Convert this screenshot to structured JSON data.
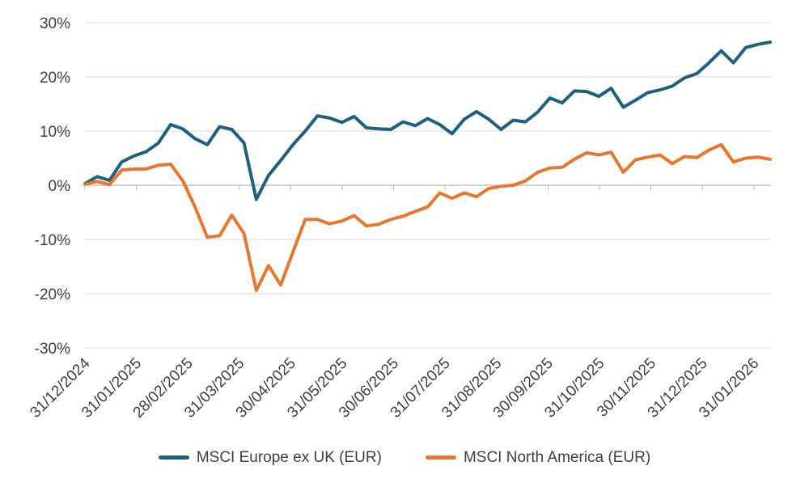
{
  "colors": {
    "background": "#ffffff",
    "gridline": "#dadada",
    "axis": "#b8b8b8",
    "label": "#3f3f3f"
  },
  "chart_data": {
    "type": "line",
    "title": "",
    "x_frequency": "weekly",
    "x_tick_labels": [
      "31/12/2024",
      "31/01/2025",
      "28/02/2025",
      "31/03/2025",
      "30/04/2025",
      "31/05/2025",
      "30/06/2025",
      "31/07/2025",
      "31/08/2025",
      "30/09/2025",
      "31/10/2025",
      "30/11/2025",
      "31/12/2025",
      "31/01/2026"
    ],
    "y_axis": {
      "min": -30,
      "max": 30,
      "step": 10,
      "format": "percent",
      "tick_labels": [
        "30%",
        "20%",
        "10%",
        "0%",
        "-10%",
        "-20%",
        "-30%"
      ]
    },
    "grid": "horizontal",
    "legend_position": "bottom",
    "series": [
      {
        "name": "MSCI Europe ex UK (EUR)",
        "color": "#20607F",
        "values": [
          0.3,
          1.6,
          0.9,
          4.3,
          5.4,
          6.2,
          7.8,
          11.2,
          10.4,
          8.6,
          7.5,
          10.8,
          10.3,
          7.8,
          -2.6,
          1.8,
          4.6,
          7.5,
          10.0,
          12.8,
          12.4,
          11.6,
          12.7,
          10.6,
          10.4,
          10.3,
          11.7,
          11.0,
          12.3,
          11.2,
          9.5,
          12.2,
          13.6,
          12.2,
          10.3,
          12.0,
          11.7,
          13.5,
          16.1,
          15.2,
          17.4,
          17.3,
          16.4,
          17.9,
          14.4,
          15.7,
          17.1,
          17.6,
          18.3,
          19.8,
          20.6,
          22.6,
          24.8,
          22.6,
          25.4,
          26.0,
          26.4
        ]
      },
      {
        "name": "MSCI North America (EUR)",
        "color": "#E8772E",
        "values": [
          0.2,
          0.7,
          0.1,
          2.8,
          3.0,
          3.0,
          3.7,
          3.9,
          0.8,
          -4.0,
          -9.6,
          -9.3,
          -5.5,
          -8.9,
          -19.4,
          -14.8,
          -18.4,
          -12.3,
          -6.3,
          -6.3,
          -7.1,
          -6.6,
          -5.6,
          -7.5,
          -7.2,
          -6.3,
          -5.7,
          -4.8,
          -4.0,
          -1.4,
          -2.4,
          -1.4,
          -2.1,
          -0.6,
          -0.2,
          0.0,
          0.8,
          2.4,
          3.2,
          3.3,
          4.8,
          6.0,
          5.6,
          6.1,
          2.4,
          4.7,
          5.2,
          5.6,
          4.0,
          5.3,
          5.1,
          6.5,
          7.5,
          4.3,
          5.0,
          5.2,
          4.8
        ]
      }
    ]
  },
  "legend": {
    "items": [
      {
        "label": "MSCI Europe ex UK (EUR)"
      },
      {
        "label": "MSCI North America (EUR)"
      }
    ]
  }
}
